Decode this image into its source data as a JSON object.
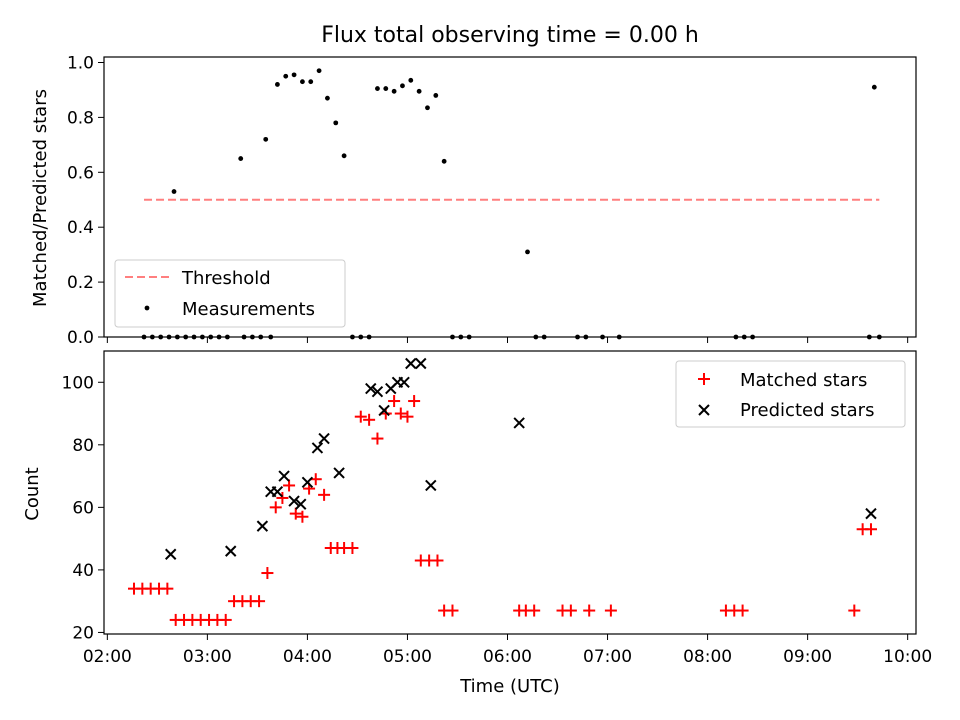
{
  "figure": {
    "title": "Flux total observing time = 0.00 h"
  },
  "chart_data": [
    {
      "type": "scatter",
      "title": "Flux total observing time = 0.00 h",
      "xlabel": "",
      "ylabel": "Matched/Predicted stars",
      "xlim": [
        "01:58",
        "10:05"
      ],
      "ylim": [
        0,
        1.02
      ],
      "yticks": [
        "0.0",
        "0.2",
        "0.4",
        "0.6",
        "0.8",
        "1.0"
      ],
      "grid": false,
      "legend_position": "lower-left",
      "threshold": {
        "name": "Threshold",
        "color": "#ff7f7f",
        "x": [
          "02:22",
          "09:43"
        ],
        "y": 0.5
      },
      "series": [
        {
          "name": "Measurements",
          "color": "#000000",
          "x": [
            "02:22",
            "02:27",
            "02:32",
            "02:37",
            "02:42",
            "02:47",
            "02:52",
            "02:57",
            "03:02",
            "03:07",
            "03:12",
            "03:22",
            "03:27",
            "03:32",
            "03:38",
            "02:40",
            "03:20",
            "03:35",
            "03:42",
            "03:47",
            "03:52",
            "03:57",
            "04:02",
            "04:07",
            "04:12",
            "04:17",
            "04:22",
            "04:27",
            "04:32",
            "04:37",
            "04:42",
            "04:47",
            "04:52",
            "04:57",
            "05:02",
            "05:07",
            "05:12",
            "05:17",
            "05:22",
            "05:27",
            "05:32",
            "05:37",
            "06:12",
            "06:17",
            "06:22",
            "06:42",
            "06:47",
            "06:57",
            "07:07",
            "08:17",
            "08:22",
            "08:27",
            "09:37",
            "09:40",
            "09:43"
          ],
          "y": [
            0,
            0,
            0,
            0,
            0,
            0,
            0,
            0,
            0,
            0,
            0,
            0,
            0,
            0,
            0,
            0.53,
            0.65,
            0.72,
            0.92,
            0.95,
            0.955,
            0.93,
            0.93,
            0.97,
            0.87,
            0.78,
            0.66,
            0,
            0,
            0,
            0.905,
            0.905,
            0.895,
            0.915,
            0.935,
            0.895,
            0.835,
            0.88,
            0.64,
            0,
            0,
            0,
            0.31,
            0,
            0,
            0,
            0,
            0,
            0,
            0,
            0,
            0,
            0,
            0.91,
            0
          ]
        }
      ]
    },
    {
      "type": "scatter",
      "title": "",
      "xlabel": "Time (UTC)",
      "ylabel": "Count",
      "xlim": [
        "01:58",
        "10:05"
      ],
      "ylim": [
        19.5,
        110
      ],
      "xticks": [
        "02:00",
        "03:00",
        "04:00",
        "05:00",
        "06:00",
        "07:00",
        "08:00",
        "09:00",
        "10:00"
      ],
      "yticks": [
        "20",
        "40",
        "60",
        "80",
        "100"
      ],
      "grid": false,
      "legend_position": "upper-right",
      "series": [
        {
          "name": "Matched stars",
          "color": "#ff0000",
          "x": [
            "02:16",
            "02:21",
            "02:26",
            "02:31",
            "02:36",
            "02:41",
            "02:46",
            "02:51",
            "02:56",
            "03:01",
            "03:06",
            "03:11",
            "03:16",
            "03:21",
            "03:26",
            "03:31",
            "03:36",
            "03:41",
            "03:45",
            "03:49",
            "03:53",
            "03:57",
            "04:01",
            "04:05",
            "04:10",
            "04:14",
            "04:18",
            "04:22",
            "04:27",
            "04:32",
            "04:37",
            "04:42",
            "04:47",
            "04:52",
            "04:56",
            "05:00",
            "05:04",
            "05:08",
            "05:13",
            "05:18",
            "05:22",
            "05:27",
            "06:07",
            "06:11",
            "06:16",
            "06:33",
            "06:38",
            "06:49",
            "07:02",
            "08:11",
            "08:16",
            "08:21",
            "09:28",
            "09:33",
            "09:38"
          ],
          "y": [
            34,
            34,
            34,
            34,
            34,
            24,
            24,
            24,
            24,
            24,
            24,
            24,
            30,
            30,
            30,
            30,
            39,
            60,
            63,
            67,
            58,
            57,
            66,
            69,
            64,
            47,
            47,
            47,
            47,
            89,
            88,
            82,
            90,
            94,
            90,
            89,
            94,
            43,
            43,
            43,
            27,
            27,
            27,
            27,
            27,
            27,
            27,
            27,
            27,
            27,
            27,
            27,
            27,
            53,
            53
          ]
        },
        {
          "name": "Predicted stars",
          "color": "#000000",
          "x": [
            "02:38",
            "03:14",
            "03:33",
            "03:38",
            "03:42",
            "03:46",
            "03:52",
            "03:56",
            "04:00",
            "04:06",
            "04:10",
            "04:19",
            "04:38",
            "04:42",
            "04:46",
            "04:50",
            "04:54",
            "04:58",
            "05:02",
            "05:08",
            "05:14",
            "06:07",
            "09:38"
          ],
          "y": [
            45,
            46,
            54,
            65,
            65,
            70,
            62,
            61,
            68,
            79,
            82,
            71,
            98,
            97,
            91,
            98,
            100,
            100,
            106,
            106,
            67,
            87,
            58
          ]
        }
      ]
    }
  ]
}
